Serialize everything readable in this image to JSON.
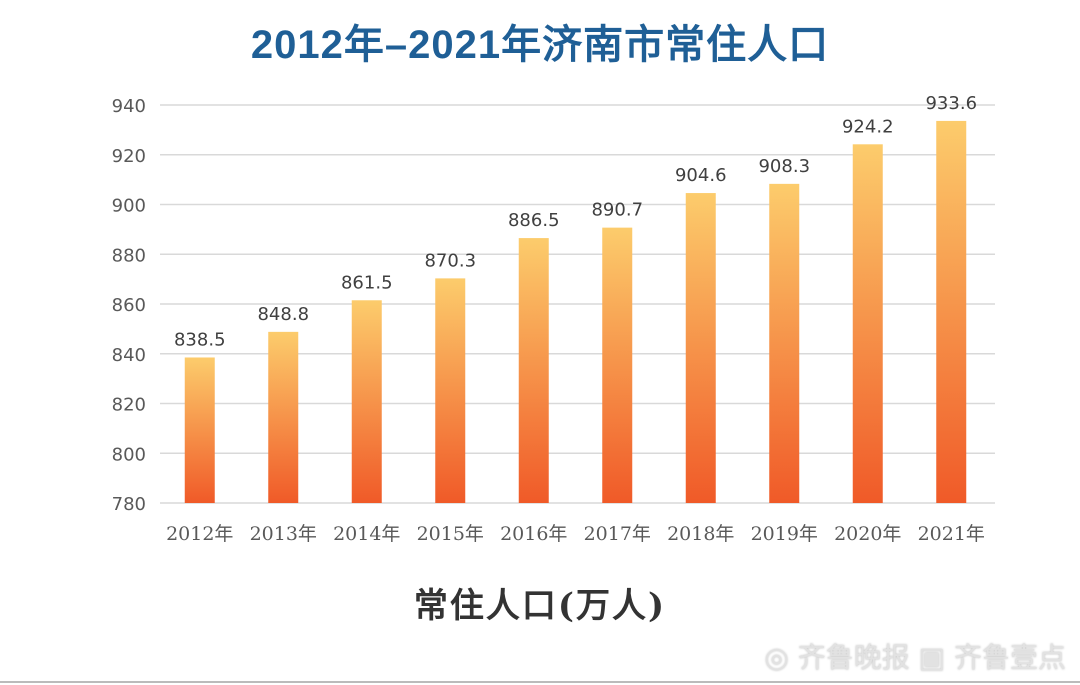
{
  "chart_data": {
    "type": "bar",
    "title": "2012年–2021年济南市常住人口",
    "xlabel": "常住人口(万人)",
    "ylabel": "",
    "categories": [
      "2012年",
      "2013年",
      "2014年",
      "2015年",
      "2016年",
      "2017年",
      "2018年",
      "2019年",
      "2020年",
      "2021年"
    ],
    "values": [
      838.5,
      848.8,
      861.5,
      870.3,
      886.5,
      890.7,
      904.6,
      908.3,
      924.2,
      933.6
    ],
    "ylim": [
      780,
      940
    ],
    "yticks": [
      780,
      800,
      820,
      840,
      860,
      880,
      900,
      920,
      940
    ],
    "grid": true,
    "bar_gradient": {
      "top": "#fccc6c",
      "bottom": "#f05a28"
    },
    "title_color": "#1f5f96"
  },
  "watermark": "齐鲁晚报 齐鲁壹点"
}
